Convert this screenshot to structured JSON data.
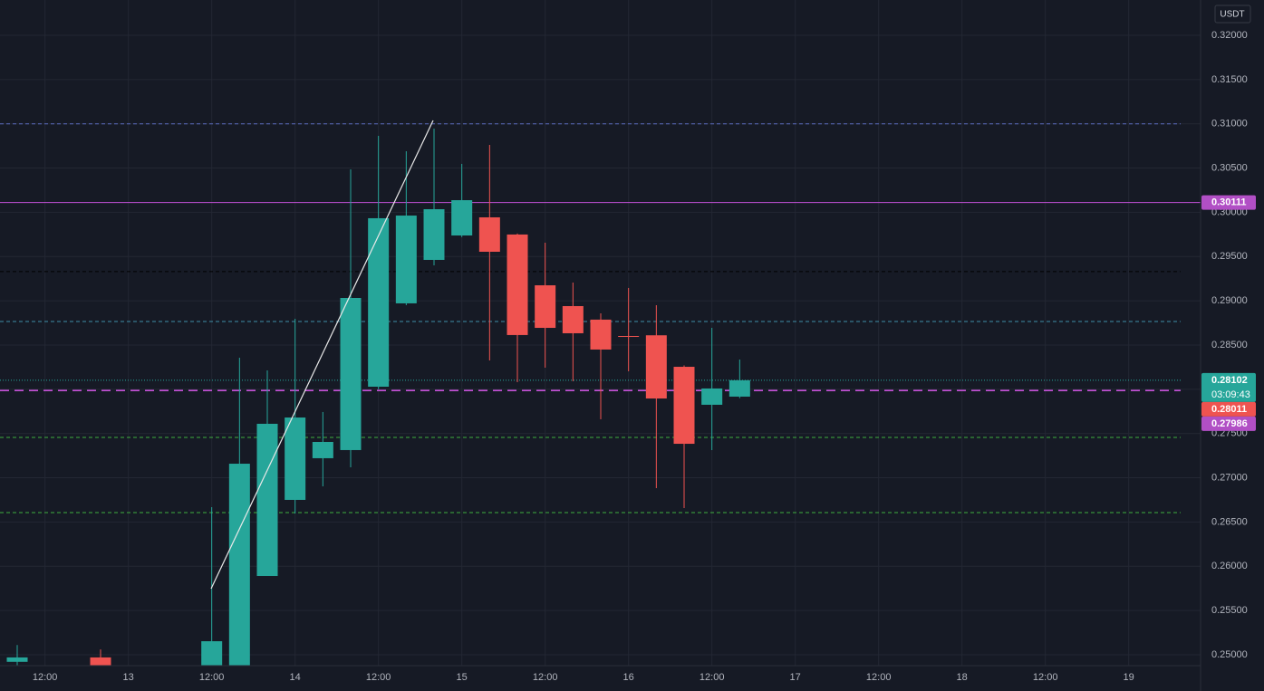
{
  "chart_data": {
    "type": "candlestick",
    "currency": "USDT",
    "categories": [
      null,
      "12:00",
      null,
      null,
      "13",
      null,
      null,
      "12:00",
      null,
      null,
      "14",
      null,
      null,
      "12:00",
      null,
      null,
      "15",
      null,
      null,
      "12:00",
      null,
      null,
      "16",
      null,
      null,
      "12:00",
      null,
      null,
      "17",
      null,
      null,
      "12:00",
      null,
      null,
      "18",
      null,
      null,
      "12:00",
      null,
      null,
      "19",
      null,
      null
    ],
    "series": {
      "up_color": "#26a69a",
      "down_color": "#ef5350",
      "open": [
        0.2492,
        null,
        null,
        0.2497,
        null,
        null,
        null,
        0.247,
        0.2475,
        0.2589,
        0.2675,
        0.27221,
        0.27313,
        0.28029,
        0.28971,
        0.29462,
        0.29738,
        0.29943,
        0.29749,
        0.29175,
        0.2894,
        0.28787,
        0.28602,
        0.2861,
        0.28254,
        0.27825,
        0.27917,
        null,
        null,
        null,
        null,
        null,
        null,
        null,
        null,
        null,
        null,
        null,
        null,
        null,
        null,
        null,
        null
      ],
      "high": [
        0.2511,
        null,
        null,
        0.2506,
        null,
        null,
        null,
        0.26668,
        0.28357,
        0.28213,
        0.28797,
        0.27743,
        0.30485,
        0.30864,
        0.3069,
        0.30946,
        0.30547,
        0.30762,
        0.2976,
        0.29656,
        0.29206,
        0.28858,
        0.29145,
        0.2895,
        0.2827,
        0.28694,
        0.28336,
        null,
        null,
        null,
        null,
        null,
        null,
        null,
        null,
        null,
        null,
        null,
        null,
        null,
        null,
        null,
        null
      ],
      "low": [
        0.248,
        null,
        null,
        0.248,
        null,
        null,
        null,
        0.246,
        0.2465,
        0.2589,
        0.26596,
        0.26903,
        0.27118,
        0.28,
        0.2895,
        0.29401,
        0.2972,
        0.28326,
        0.2808,
        0.28244,
        0.28091,
        0.27661,
        0.28203,
        0.26883,
        0.26658,
        0.27313,
        0.279,
        null,
        null,
        null,
        null,
        null,
        null,
        null,
        null,
        null,
        null,
        null,
        null,
        null,
        null,
        null,
        null
      ],
      "close": [
        0.2497,
        null,
        null,
        0.2485,
        null,
        null,
        null,
        0.25153,
        0.27159,
        0.2761,
        0.27681,
        0.27405,
        0.29032,
        0.29933,
        0.29963,
        0.30035,
        0.30137,
        0.29554,
        0.28613,
        0.28694,
        0.28633,
        0.28449,
        0.286,
        0.27896,
        0.27384,
        0.28009,
        0.28102,
        null,
        null,
        null,
        null,
        null,
        null,
        null,
        null,
        null,
        null,
        null,
        null,
        null,
        null,
        null,
        null
      ]
    },
    "ylim": [
      0.24877,
      0.32399
    ],
    "yticks": [
      {
        "value": 0.25,
        "label": "0.25000"
      },
      {
        "value": 0.255,
        "label": "0.25500"
      },
      {
        "value": 0.26,
        "label": "0.26000"
      },
      {
        "value": 0.265,
        "label": "0.26500"
      },
      {
        "value": 0.27,
        "label": "0.27000"
      },
      {
        "value": 0.275,
        "label": "0.27500"
      },
      {
        "value": 0.28,
        "label": "0.28000"
      },
      {
        "value": 0.285,
        "label": "0.28500"
      },
      {
        "value": 0.29,
        "label": "0.29000"
      },
      {
        "value": 0.295,
        "label": "0.29500"
      },
      {
        "value": 0.3,
        "label": "0.30000"
      },
      {
        "value": 0.305,
        "label": "0.30500"
      },
      {
        "value": 0.31,
        "label": "0.31000"
      },
      {
        "value": 0.315,
        "label": "0.31500"
      },
      {
        "value": 0.32,
        "label": "0.32000"
      }
    ],
    "grid": true,
    "hlines": [
      {
        "value": 0.31,
        "color": "#5b6bbf",
        "style": "dashed"
      },
      {
        "value": 0.30111,
        "color": "#c552d8",
        "style": "solid"
      },
      {
        "value": 0.2933,
        "color": "#000000",
        "style": "dashed"
      },
      {
        "value": 0.28766,
        "color": "#3f8fa8",
        "style": "dashed"
      },
      {
        "value": 0.28102,
        "color": "#26a69a",
        "style": "dotted"
      },
      {
        "value": 0.27986,
        "color": "#c552d8",
        "style": "long-dashed"
      },
      {
        "value": 0.27456,
        "color": "#3fae3f",
        "style": "dashed"
      },
      {
        "value": 0.26607,
        "color": "#3fae3f",
        "style": "dashed"
      }
    ],
    "price_tags": [
      {
        "value": 0.30111,
        "color": "#b14fc5"
      },
      {
        "value": 0.28102,
        "color": "#26a69a",
        "countdown": "03:09:43"
      },
      {
        "value": 0.28011,
        "color": "#ef5350"
      },
      {
        "value": 0.27986,
        "color": "#b14fc5"
      }
    ]
  }
}
